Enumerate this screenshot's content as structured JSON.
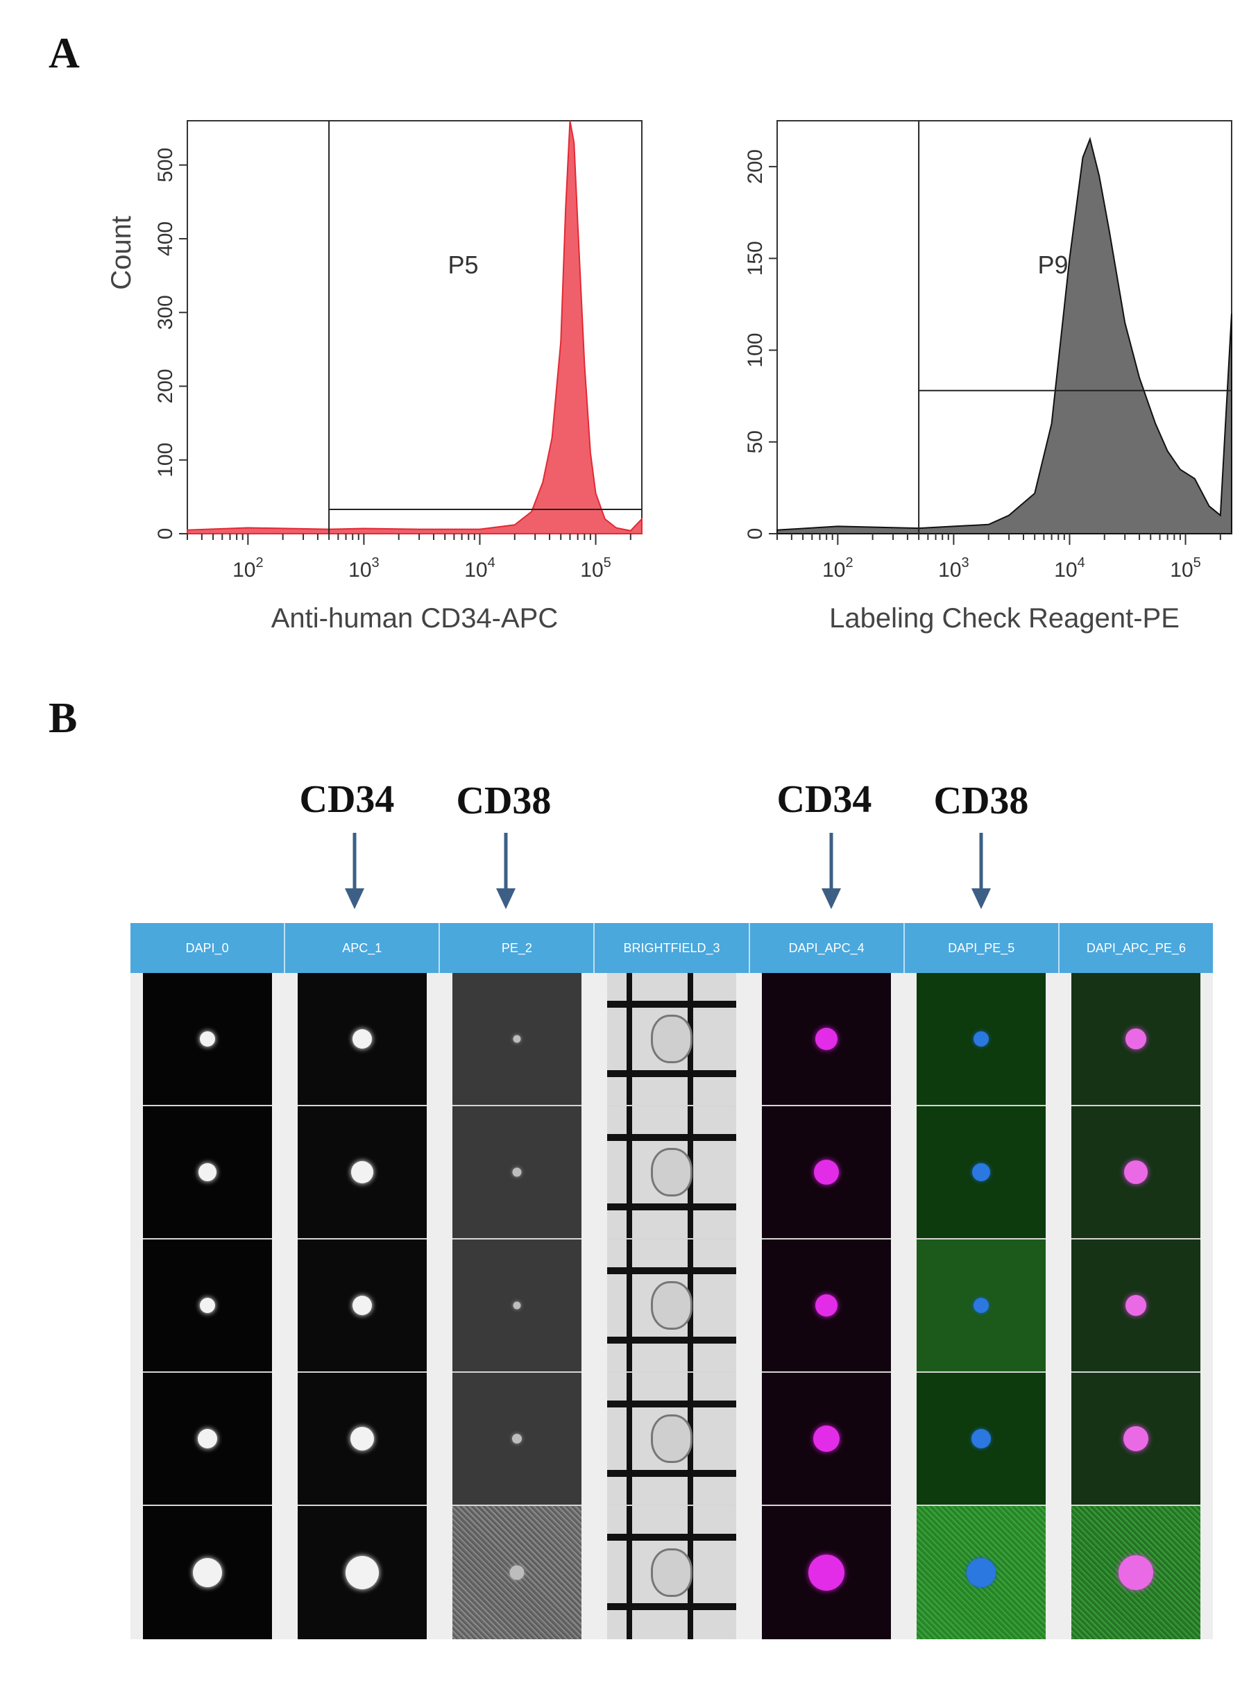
{
  "panels": {
    "a_label": "A",
    "b_label": "B"
  },
  "chart_data": [
    {
      "type": "area",
      "title": "",
      "xlabel": "Anti-human CD34-APC",
      "ylabel": "Count",
      "xscale": "log",
      "xlim": [
        30,
        250000
      ],
      "ylim": [
        0,
        560
      ],
      "xticks": [
        {
          "v": 100,
          "base": "10",
          "exp": "2"
        },
        {
          "v": 1000,
          "base": "10",
          "exp": "3"
        },
        {
          "v": 10000,
          "base": "10",
          "exp": "4"
        },
        {
          "v": 100000,
          "base": "10",
          "exp": "5"
        }
      ],
      "yticks": [
        0,
        100,
        200,
        300,
        400,
        500
      ],
      "color": "#f0606a",
      "line_color": "#e02a35",
      "gate": {
        "name": "P5",
        "x_start": 500,
        "level": 33
      },
      "series": [
        {
          "x": [
            30,
            100,
            500,
            1000,
            3000,
            10000,
            20000,
            28000,
            35000,
            42000,
            50000,
            55000,
            60000,
            65000,
            70000,
            80000,
            90000,
            100000,
            120000,
            150000,
            200000,
            250000
          ],
          "y": [
            5,
            8,
            6,
            7,
            6,
            6,
            12,
            30,
            70,
            130,
            260,
            440,
            560,
            530,
            420,
            230,
            110,
            55,
            20,
            8,
            4,
            20
          ]
        }
      ]
    },
    {
      "type": "area",
      "title": "",
      "xlabel": "Labeling Check Reagent-PE",
      "ylabel": "",
      "xscale": "log",
      "xlim": [
        30,
        250000
      ],
      "ylim": [
        0,
        225
      ],
      "xticks": [
        {
          "v": 100,
          "base": "10",
          "exp": "2"
        },
        {
          "v": 1000,
          "base": "10",
          "exp": "3"
        },
        {
          "v": 10000,
          "base": "10",
          "exp": "4"
        },
        {
          "v": 100000,
          "base": "10",
          "exp": "5"
        }
      ],
      "yticks": [
        0,
        50,
        100,
        150,
        200
      ],
      "color": "#6e6e6e",
      "line_color": "#111111",
      "gate": {
        "name": "P9",
        "x_start": 500,
        "level": 78
      },
      "series": [
        {
          "x": [
            30,
            100,
            500,
            1000,
            2000,
            3000,
            5000,
            7000,
            10000,
            13000,
            15000,
            18000,
            22000,
            30000,
            40000,
            55000,
            70000,
            90000,
            120000,
            160000,
            200000,
            250000
          ],
          "y": [
            2,
            4,
            3,
            4,
            5,
            10,
            22,
            60,
            150,
            205,
            215,
            195,
            165,
            115,
            85,
            60,
            45,
            35,
            30,
            15,
            10,
            120
          ]
        }
      ]
    }
  ],
  "markers": [
    "CD34",
    "CD38",
    "CD34",
    "CD38"
  ],
  "grid": {
    "columns": [
      "DAPI_0",
      "APC_1",
      "PE_2",
      "BRIGHTFIELD_3",
      "DAPI_APC_4",
      "DAPI_PE_5",
      "DAPI_APC_PE_6"
    ],
    "rows": 5
  }
}
